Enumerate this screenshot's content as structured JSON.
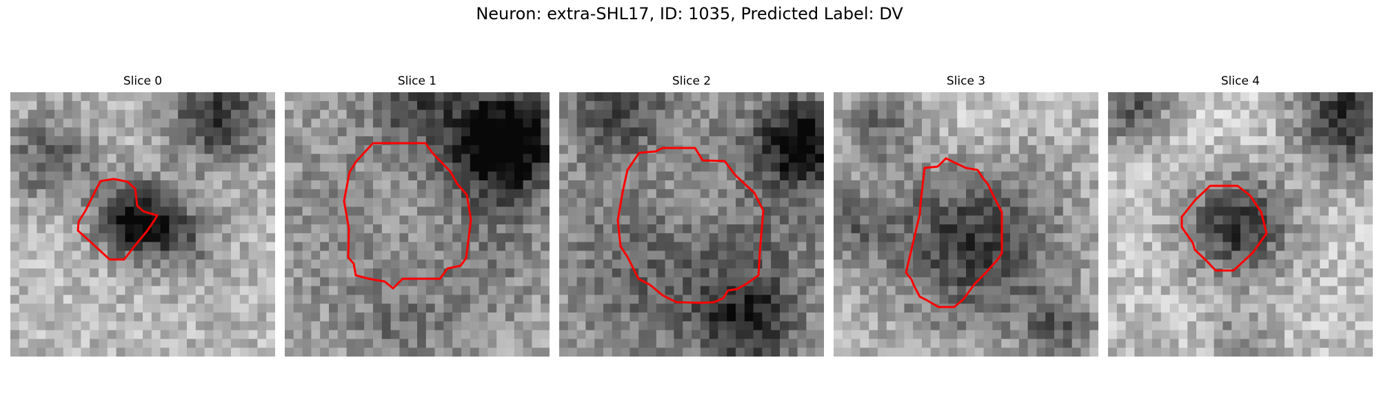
{
  "figure": {
    "title": "Neuron: extra-SHL17, ID: 1035, Predicted Label: DV"
  },
  "colors": {
    "background": "#ffffff",
    "roi_outline": "#ff0000"
  },
  "panels": [
    {
      "title": "Slice 0"
    },
    {
      "title": "Slice 1"
    },
    {
      "title": "Slice 2"
    },
    {
      "title": "Slice 3"
    },
    {
      "title": "Slice 4"
    }
  ]
}
